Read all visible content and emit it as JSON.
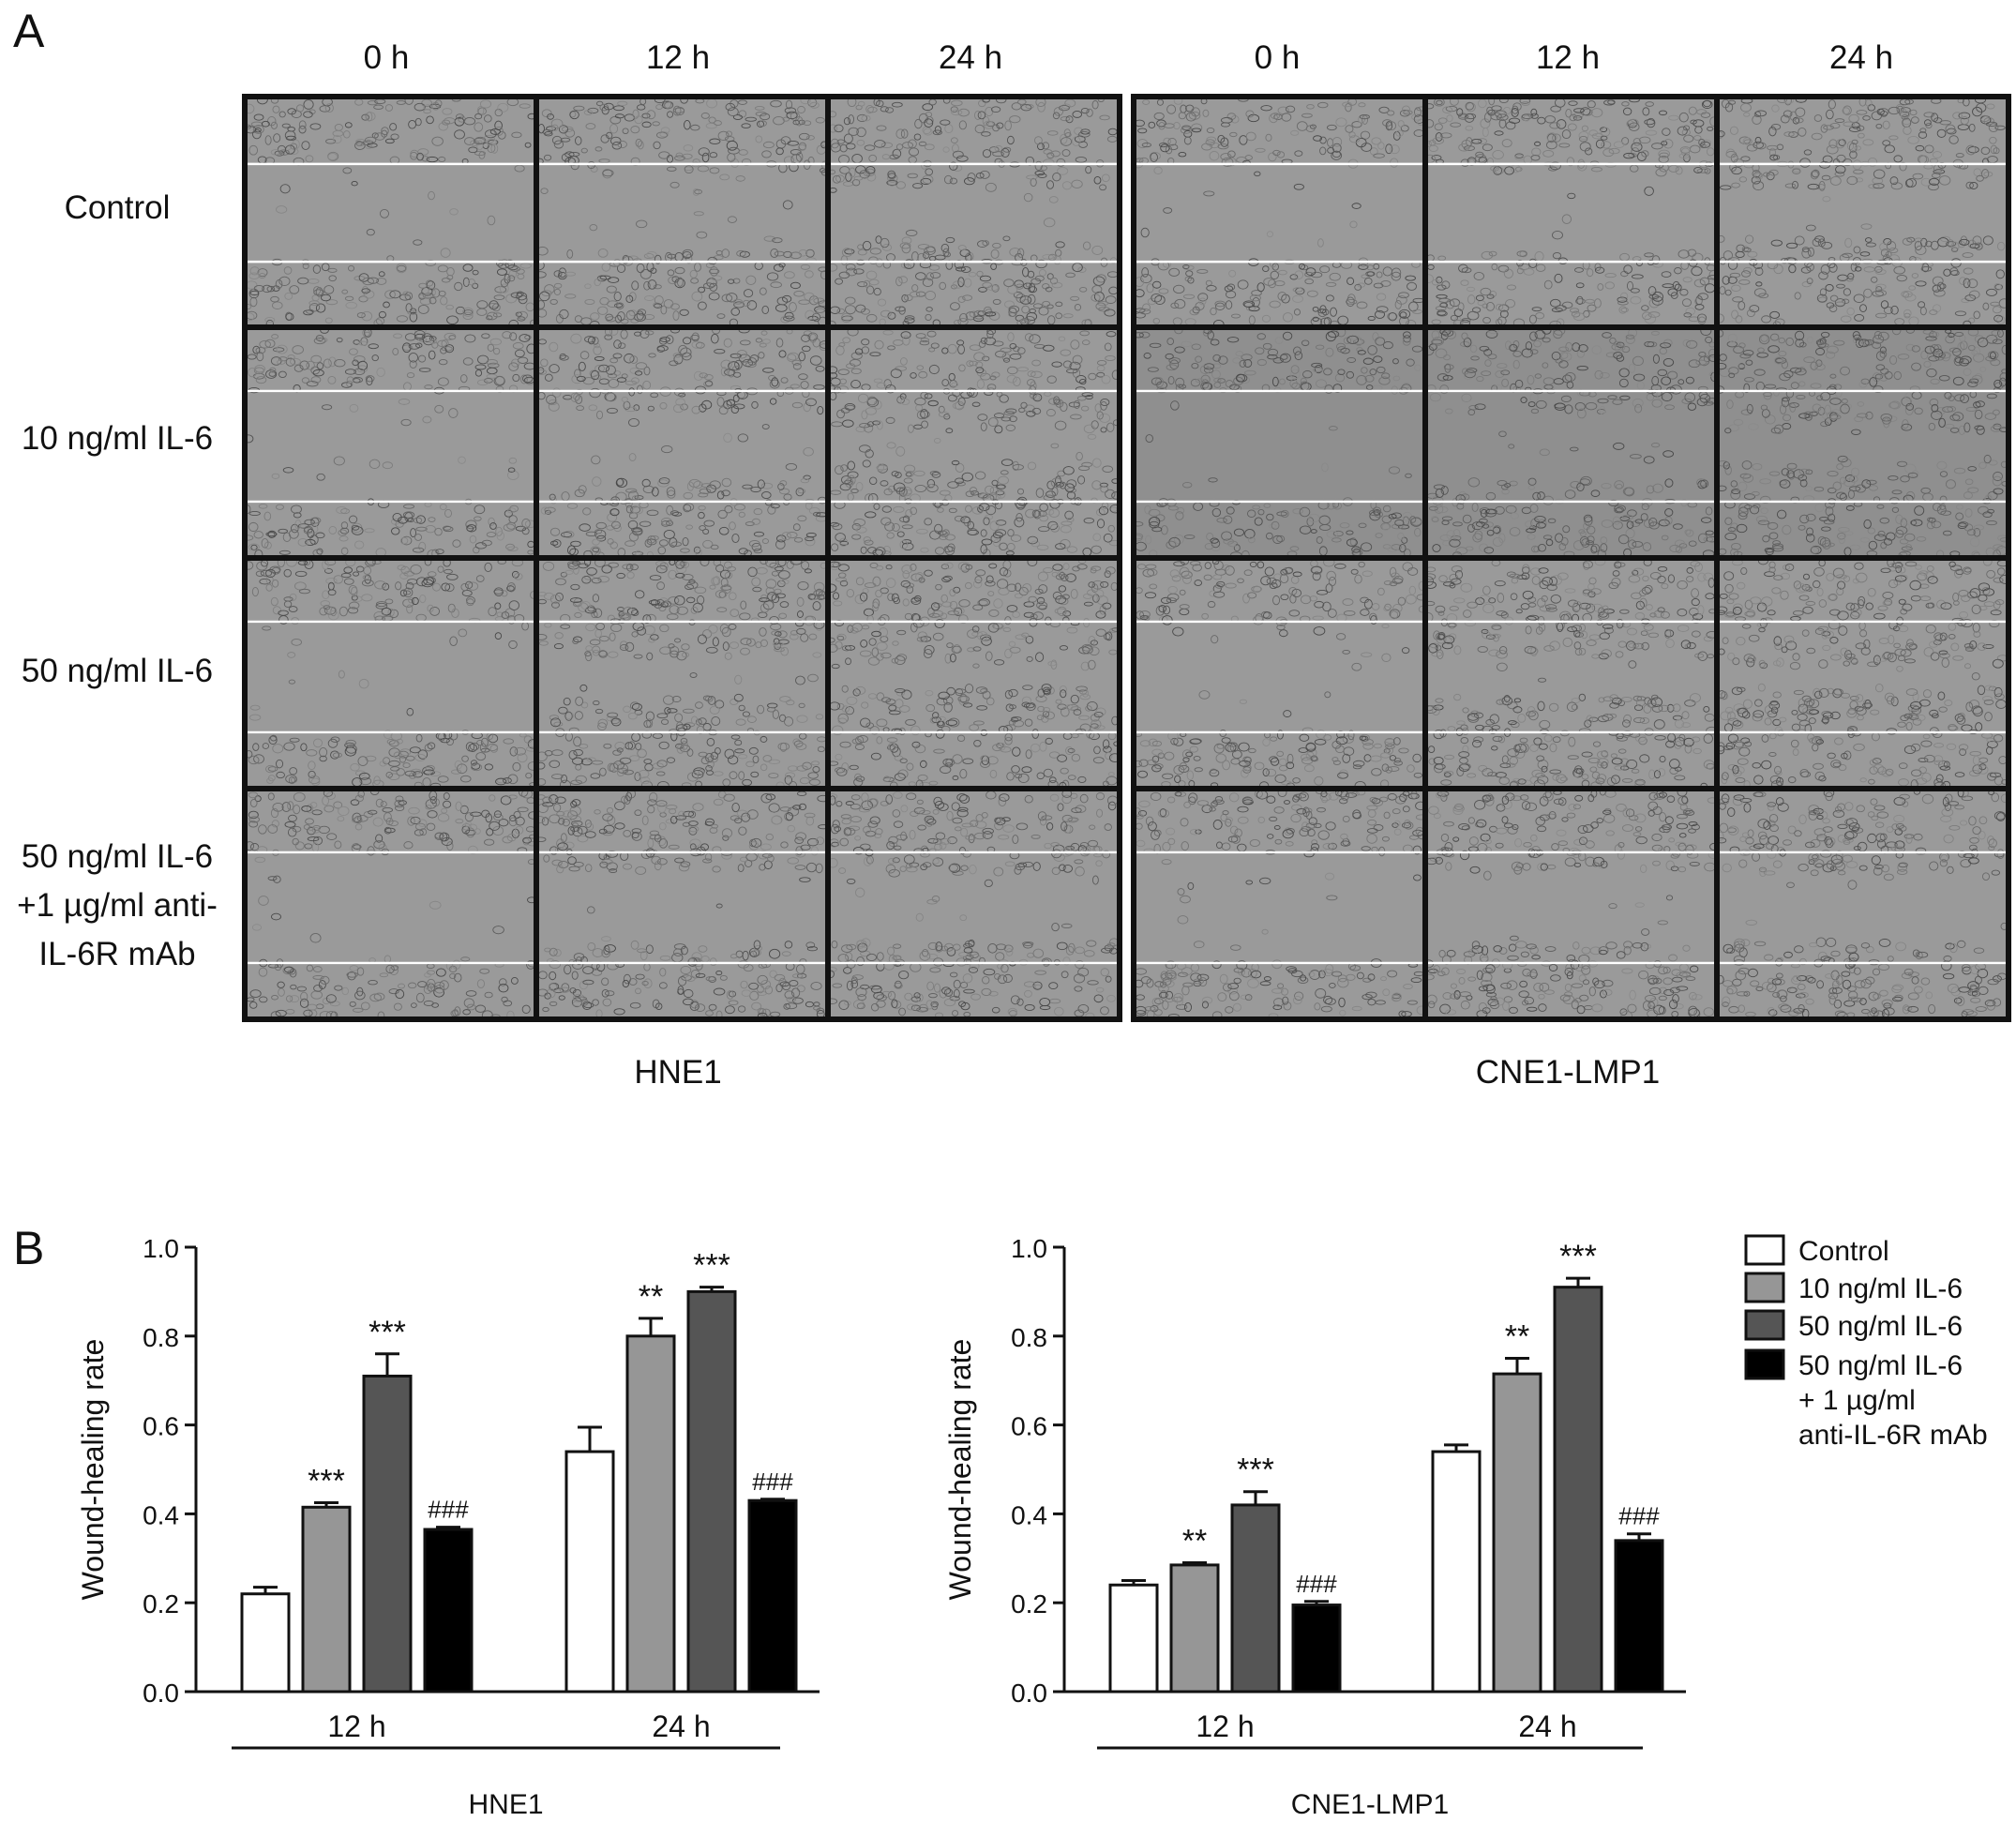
{
  "panel_a": {
    "letter": "A",
    "time_labels": [
      "0 h",
      "12 h",
      "24 h"
    ],
    "row_labels": [
      [
        "Control"
      ],
      [
        "10 ng/ml IL-6"
      ],
      [
        "50 ng/ml IL-6"
      ],
      [
        "50 ng/ml IL-6",
        "+1 µg/ml anti-",
        "IL-6R mAb"
      ]
    ],
    "groups": [
      "HNE1",
      "CNE1-LMP1"
    ],
    "scratch_gap_open_fraction": [
      [
        1.0,
        0.78,
        0.46
      ],
      [
        1.0,
        0.58,
        0.2
      ],
      [
        1.0,
        0.29,
        0.1
      ],
      [
        1.0,
        0.63,
        0.57
      ]
    ]
  },
  "panel_b": {
    "letter": "B"
  },
  "chart_data": [
    {
      "type": "bar",
      "title": "",
      "xlabel": "HNE1",
      "ylabel": "Wound-healing rate",
      "categories": [
        "12 h",
        "24 h"
      ],
      "ylim": [
        0.0,
        1.0
      ],
      "yticks": [
        "0.0",
        "0.2",
        "0.4",
        "0.6",
        "0.8",
        "1.0"
      ],
      "series": [
        {
          "name": "Control",
          "color": "#ffffff",
          "values": [
            0.22,
            0.54
          ],
          "errors": [
            0.015,
            0.055
          ],
          "annotations": [
            "",
            ""
          ]
        },
        {
          "name": "10 ng/ml IL-6",
          "color": "#969696",
          "values": [
            0.415,
            0.8
          ],
          "errors": [
            0.01,
            0.04
          ],
          "annotations": [
            "***",
            "**"
          ]
        },
        {
          "name": "50 ng/ml IL-6",
          "color": "#555555",
          "values": [
            0.71,
            0.9
          ],
          "errors": [
            0.05,
            0.01
          ],
          "annotations": [
            "***",
            "***"
          ]
        },
        {
          "name": "50 ng/ml IL-6 + 1 µg/ml anti-IL-6R mAb",
          "color": "#000000",
          "values": [
            0.365,
            0.43
          ],
          "errors": [
            0.005,
            0.003
          ],
          "annotations": [
            "###",
            "###"
          ]
        }
      ]
    },
    {
      "type": "bar",
      "title": "",
      "xlabel": "CNE1-LMP1",
      "ylabel": "Wound-healing rate",
      "categories": [
        "12 h",
        "24 h"
      ],
      "ylim": [
        0.0,
        1.0
      ],
      "yticks": [
        "0.0",
        "0.2",
        "0.4",
        "0.6",
        "0.8",
        "1.0"
      ],
      "series": [
        {
          "name": "Control",
          "color": "#ffffff",
          "values": [
            0.24,
            0.54
          ],
          "errors": [
            0.01,
            0.015
          ],
          "annotations": [
            "",
            ""
          ]
        },
        {
          "name": "10 ng/ml IL-6",
          "color": "#969696",
          "values": [
            0.285,
            0.715
          ],
          "errors": [
            0.005,
            0.035
          ],
          "annotations": [
            "**",
            "**"
          ]
        },
        {
          "name": "50 ng/ml IL-6",
          "color": "#555555",
          "values": [
            0.42,
            0.91
          ],
          "errors": [
            0.03,
            0.02
          ],
          "annotations": [
            "***",
            "***"
          ]
        },
        {
          "name": "50 ng/ml IL-6 + 1 µg/ml anti-IL-6R mAb",
          "color": "#000000",
          "values": [
            0.195,
            0.34
          ],
          "errors": [
            0.008,
            0.015
          ],
          "annotations": [
            "###",
            "###"
          ]
        }
      ]
    }
  ],
  "legend": {
    "placement": "right",
    "items": [
      {
        "lines": [
          "Control"
        ],
        "color": "#ffffff"
      },
      {
        "lines": [
          "10 ng/ml IL-6"
        ],
        "color": "#969696"
      },
      {
        "lines": [
          "50 ng/ml IL-6"
        ],
        "color": "#555555"
      },
      {
        "lines": [
          "50 ng/ml IL-6",
          "+ 1 µg/ml",
          "anti-IL-6R mAb"
        ],
        "color": "#000000"
      }
    ]
  }
}
